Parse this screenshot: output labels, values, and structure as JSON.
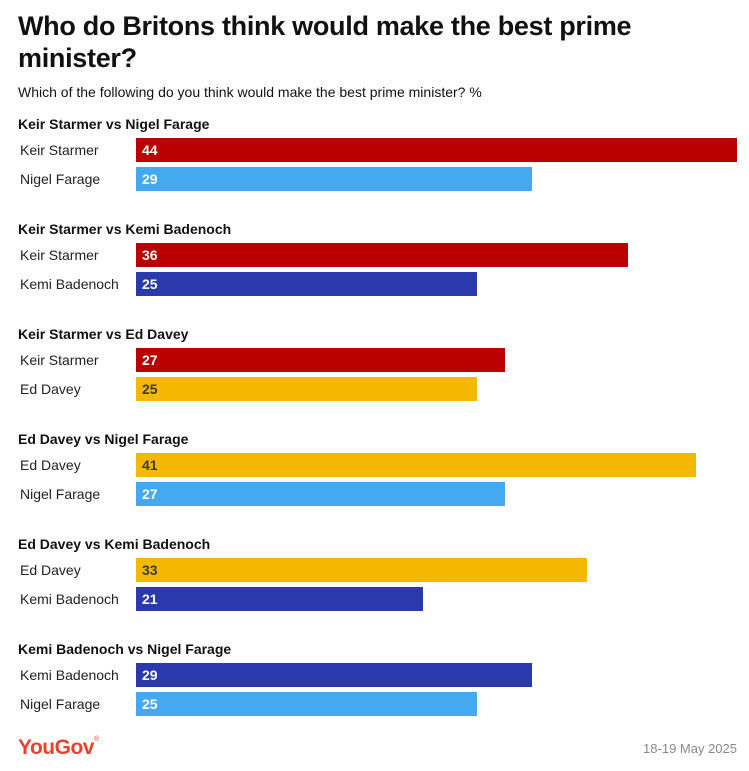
{
  "header": {
    "title": "Who do Britons think would make the best prime minister?",
    "subtitle": "Which of the following do you think would make the best prime minister? %"
  },
  "footer": {
    "logo": "YouGov",
    "date": "18-19 May 2025"
  },
  "colors": {
    "Keir Starmer": "#bb0000",
    "Nigel Farage": "#44a9f0",
    "Kemi Badenoch": "#2a3aad",
    "Ed Davey": "#f5b800"
  },
  "chart_data": {
    "type": "bar",
    "orientation": "horizontal",
    "xlim": [
      0,
      44
    ],
    "grid": false,
    "legend": "none",
    "groups": [
      {
        "title": "Keir Starmer vs Nigel Farage",
        "bars": [
          {
            "label": "Keir Starmer",
            "value": 44
          },
          {
            "label": "Nigel Farage",
            "value": 29
          }
        ]
      },
      {
        "title": "Keir Starmer vs Kemi Badenoch",
        "bars": [
          {
            "label": "Keir Starmer",
            "value": 36
          },
          {
            "label": "Kemi Badenoch",
            "value": 25
          }
        ]
      },
      {
        "title": "Keir Starmer vs Ed Davey",
        "bars": [
          {
            "label": "Keir Starmer",
            "value": 27
          },
          {
            "label": "Ed Davey",
            "value": 25
          }
        ]
      },
      {
        "title": "Ed Davey vs Nigel Farage",
        "bars": [
          {
            "label": "Ed Davey",
            "value": 41
          },
          {
            "label": "Nigel Farage",
            "value": 27
          }
        ]
      },
      {
        "title": "Ed Davey vs Kemi Badenoch",
        "bars": [
          {
            "label": "Ed Davey",
            "value": 33
          },
          {
            "label": "Kemi Badenoch",
            "value": 21
          }
        ]
      },
      {
        "title": "Kemi Badenoch vs Nigel Farage",
        "bars": [
          {
            "label": "Kemi Badenoch",
            "value": 29
          },
          {
            "label": "Nigel Farage",
            "value": 25
          }
        ]
      }
    ]
  }
}
